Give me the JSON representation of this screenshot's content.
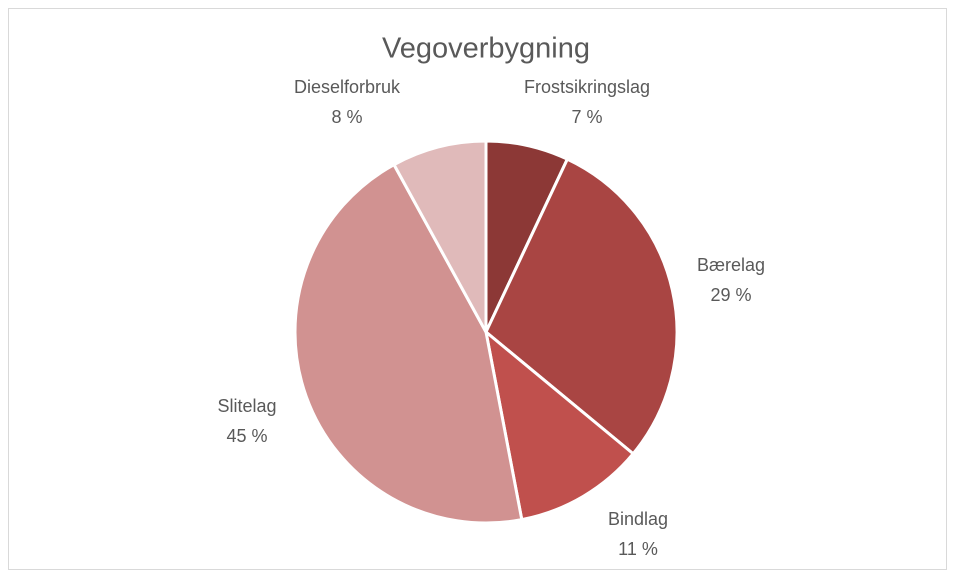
{
  "chart_data": {
    "type": "pie",
    "title": "Vegoverbygning",
    "categories": [
      "Frostsikringslag",
      "Bærelag",
      "Bindlag",
      "Slitelag",
      "Dieselforbruk"
    ],
    "values": [
      7,
      29,
      11,
      45,
      8
    ],
    "value_labels": [
      "7 %",
      "29 %",
      "11 %",
      "45 %",
      "8 %"
    ],
    "colors": [
      "#8c3836",
      "#a94543",
      "#c0504d",
      "#d19291",
      "#e0baba"
    ]
  }
}
